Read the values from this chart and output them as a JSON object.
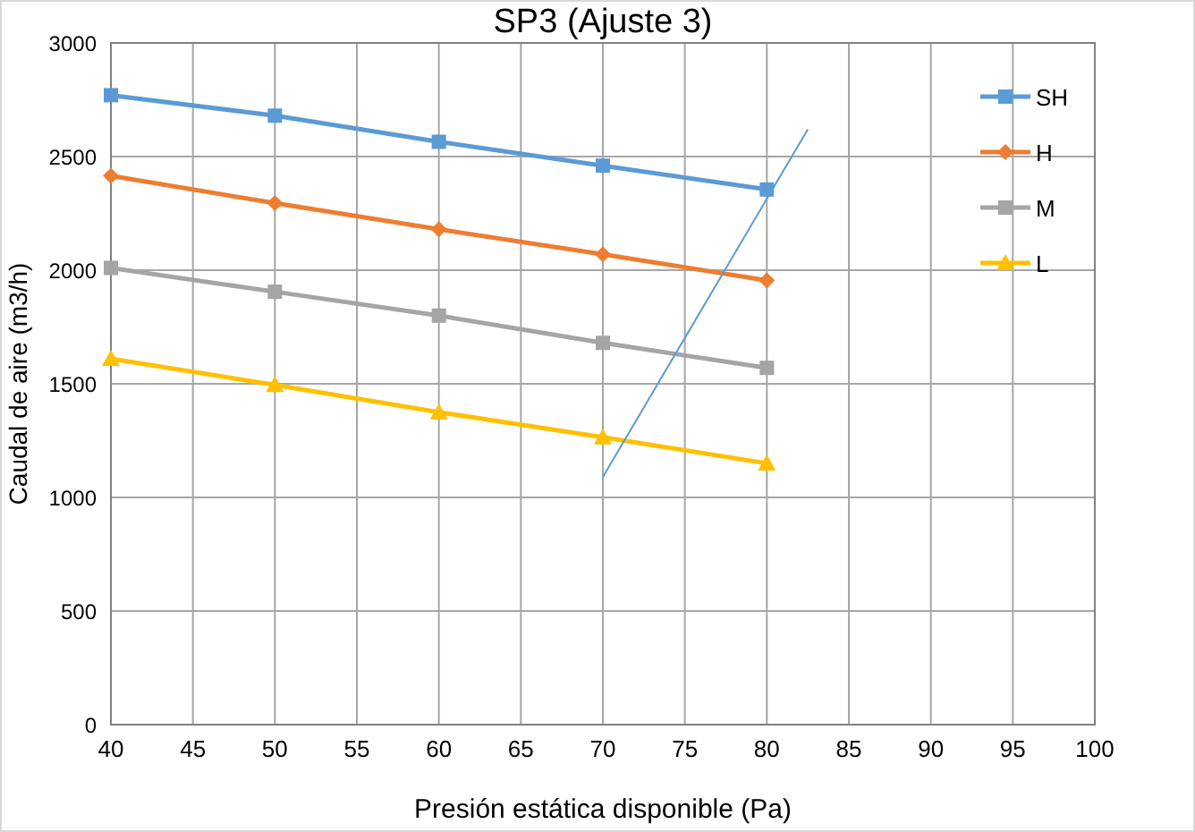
{
  "chart_data": {
    "type": "line",
    "title": "SP3 (Ajuste 3)",
    "xlabel": "Presión estática disponible (Pa)",
    "ylabel": "Caudal de aire (m3/h)",
    "x": [
      40,
      50,
      60,
      70,
      80
    ],
    "series": [
      {
        "name": "SH",
        "color": "#5b9bd5",
        "marker": "square",
        "values": [
          2770,
          2680,
          2565,
          2460,
          2355
        ]
      },
      {
        "name": "H",
        "color": "#ed7d31",
        "marker": "diamond",
        "values": [
          2415,
          2295,
          2180,
          2070,
          1955
        ]
      },
      {
        "name": "M",
        "color": "#a5a5a5",
        "marker": "square",
        "values": [
          2010,
          1905,
          1800,
          1680,
          1570
        ]
      },
      {
        "name": "L",
        "color": "#ffc000",
        "marker": "triangle",
        "values": [
          1610,
          1495,
          1375,
          1265,
          1150
        ]
      },
      {
        "type": "line",
        "color": "#5b9bd5",
        "marker": "none",
        "x": [
          70,
          82.5
        ],
        "values": [
          1090,
          2620
        ]
      }
    ],
    "xlim": [
      40,
      100
    ],
    "xticks": [
      40,
      45,
      50,
      55,
      60,
      65,
      70,
      75,
      80,
      85,
      90,
      95,
      100
    ],
    "ylim": [
      0,
      3000
    ],
    "yticks": [
      0,
      500,
      1000,
      1500,
      2000,
      2500,
      3000
    ],
    "grid": true,
    "legend": "top right"
  }
}
